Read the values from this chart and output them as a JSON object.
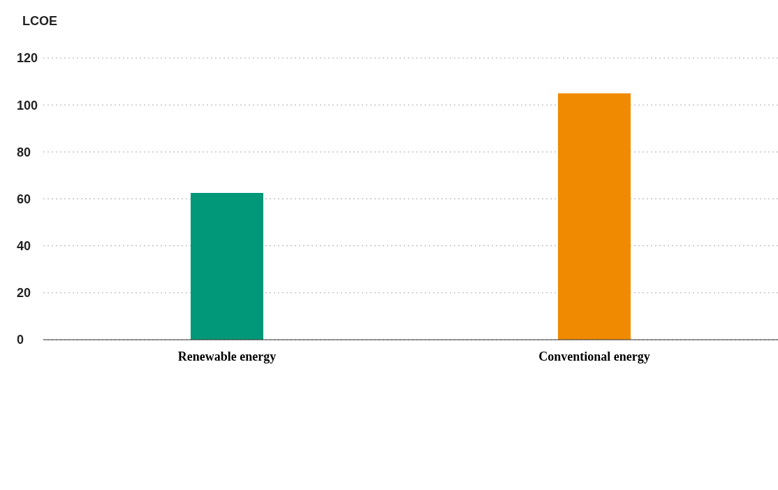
{
  "chart_data": {
    "type": "bar",
    "ylabel": "LCOE",
    "categories": [
      "Renewable energy",
      "Conventional energy"
    ],
    "values": [
      62.5,
      105
    ],
    "colors": [
      "#009878",
      "#f08a00"
    ],
    "ylim": [
      0,
      120
    ],
    "yticks": [
      0,
      20,
      40,
      60,
      80,
      100,
      120
    ],
    "grid": "y"
  }
}
